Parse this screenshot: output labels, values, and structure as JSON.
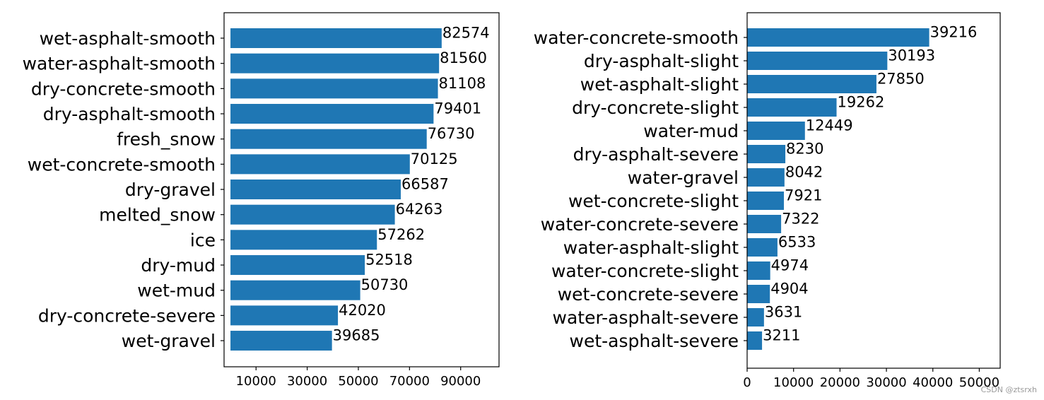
{
  "colors": {
    "bar": "#1f77b4",
    "axis": "#000000",
    "text": "#000000"
  },
  "watermark": "CSDN @ztsrxh",
  "chart_data": [
    {
      "type": "bar",
      "orientation": "horizontal",
      "categories": [
        "wet-asphalt-smooth",
        "water-asphalt-smooth",
        "dry-concrete-smooth",
        "dry-asphalt-smooth",
        "fresh_snow",
        "wet-concrete-smooth",
        "dry-gravel",
        "melted_snow",
        "ice",
        "dry-mud",
        "wet-mud",
        "dry-concrete-severe",
        "wet-gravel"
      ],
      "values": [
        82574,
        81560,
        81108,
        79401,
        76730,
        70125,
        66587,
        64263,
        57262,
        52518,
        50730,
        42020,
        39685
      ],
      "value_labels": [
        "82574",
        "81560",
        "81108",
        "79401",
        "76730",
        "70125",
        "66587",
        "64263",
        "57262",
        "52518",
        "50730",
        "42020",
        "39685"
      ],
      "xticks": [
        10000,
        30000,
        50000,
        70000,
        90000
      ],
      "xtick_labels": [
        "10000",
        "30000",
        "50000",
        "70000",
        "90000"
      ],
      "xlim": [
        -2500,
        105000
      ],
      "grid": false
    },
    {
      "type": "bar",
      "orientation": "horizontal",
      "categories": [
        "water-concrete-smooth",
        "dry-asphalt-slight",
        "wet-asphalt-slight",
        "dry-concrete-slight",
        "water-mud",
        "dry-asphalt-severe",
        "water-gravel",
        "wet-concrete-slight",
        "water-concrete-severe",
        "water-asphalt-slight",
        "water-concrete-slight",
        "wet-concrete-severe",
        "water-asphalt-severe",
        "wet-asphalt-severe"
      ],
      "values": [
        39216,
        30193,
        27850,
        19262,
        12449,
        8230,
        8042,
        7921,
        7322,
        6533,
        4974,
        4904,
        3631,
        3211
      ],
      "value_labels": [
        "39216",
        "30193",
        "27850",
        "19262",
        "12449",
        "8230",
        "8042",
        "7921",
        "7322",
        "6533",
        "4974",
        "4904",
        "3631",
        "3211"
      ],
      "xticks": [
        0,
        10000,
        20000,
        30000,
        40000,
        50000
      ],
      "xtick_labels": [
        "0",
        "10000",
        "20000",
        "30000",
        "40000",
        "50000"
      ],
      "xlim": [
        0,
        54500
      ],
      "grid": false
    }
  ]
}
